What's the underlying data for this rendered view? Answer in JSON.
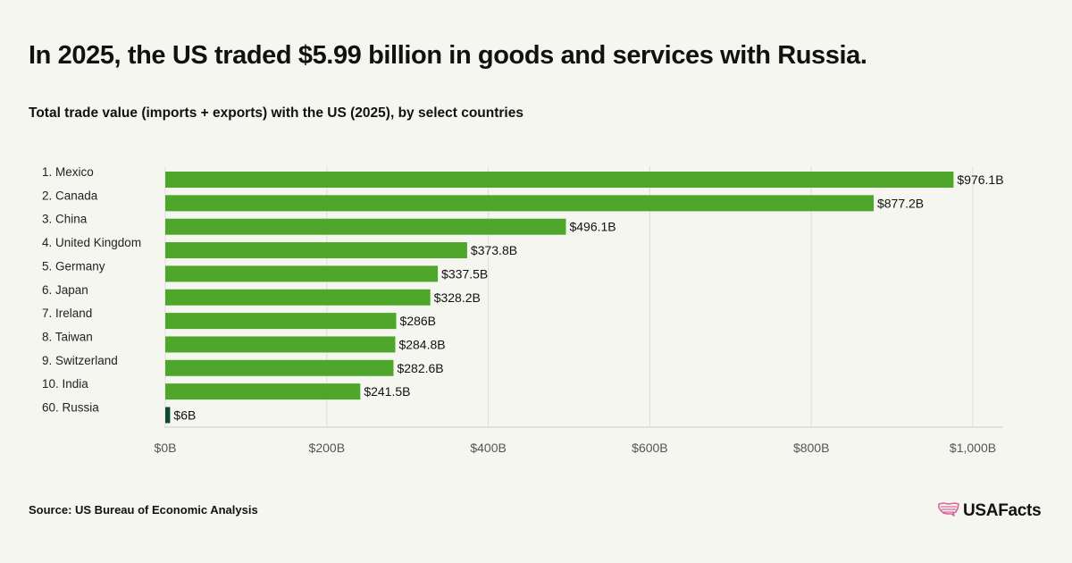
{
  "title": "In 2025, the US traded $5.99 billion in goods and services with Russia.",
  "subtitle": "Total trade value (imports + exports) with the US (2025), by select countries",
  "source": "Source: US Bureau of Economic Analysis",
  "logo": {
    "text": "USAFacts",
    "icon": "us-map-icon"
  },
  "colors": {
    "bar": "#4ea72a",
    "highlight": "#0e4b36",
    "grid": "#dedede",
    "axis_text": "#555555",
    "label_text": "#222222",
    "logo_icon": "#d9649b"
  },
  "chart_data": {
    "type": "bar",
    "orientation": "horizontal",
    "categories": [
      "1. Mexico",
      "2. Canada",
      "3. China",
      "4. United Kingdom",
      "5. Germany",
      "6. Japan",
      "7. Ireland",
      "8. Taiwan",
      "9. Switzerland",
      "10. India",
      "60. Russia"
    ],
    "values": [
      976.1,
      877.2,
      496.1,
      373.8,
      337.5,
      328.2,
      286,
      284.8,
      282.6,
      241.5,
      6
    ],
    "data_labels": [
      "$976.1B",
      "$877.2B",
      "$496.1B",
      "$373.8B",
      "$337.5B",
      "$328.2B",
      "$286B",
      "$284.8B",
      "$282.6B",
      "$241.5B",
      "$6B"
    ],
    "highlight_index": 10,
    "xlim": [
      0,
      1000
    ],
    "xticks": [
      0,
      200,
      400,
      600,
      800,
      1000
    ],
    "xtick_labels": [
      "$0B",
      "$200B",
      "$400B",
      "$600B",
      "$800B",
      "$1,000B"
    ],
    "grid": true,
    "legend": "none",
    "title": "In 2025, the US traded $5.99 billion in goods and services with Russia.",
    "subtitle": "Total trade value (imports + exports) with the US (2025), by select countries",
    "xlabel": "",
    "ylabel": ""
  }
}
